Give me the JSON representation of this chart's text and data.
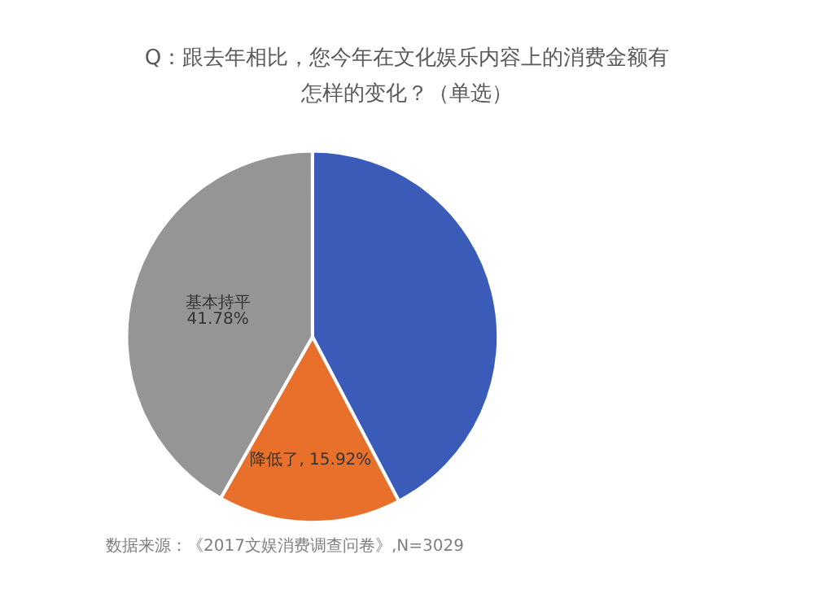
{
  "chart_data": {
    "type": "pie",
    "title": "Q：跟去年相比，您今年在文化娱乐内容上的消费金额有怎样的变化？（单选）",
    "categories": [
      null,
      "降低了",
      "基本持平"
    ],
    "values": [
      42.3,
      15.92,
      41.78
    ],
    "colors": [
      "#3a5bb8",
      "#e8702a",
      "#959595"
    ],
    "value_labels": [
      null,
      "15.92%",
      "41.78%"
    ],
    "annotations": [
      "数据来源：《2017文娱消费调查问卷》,N=3029"
    ],
    "legend": false
  }
}
